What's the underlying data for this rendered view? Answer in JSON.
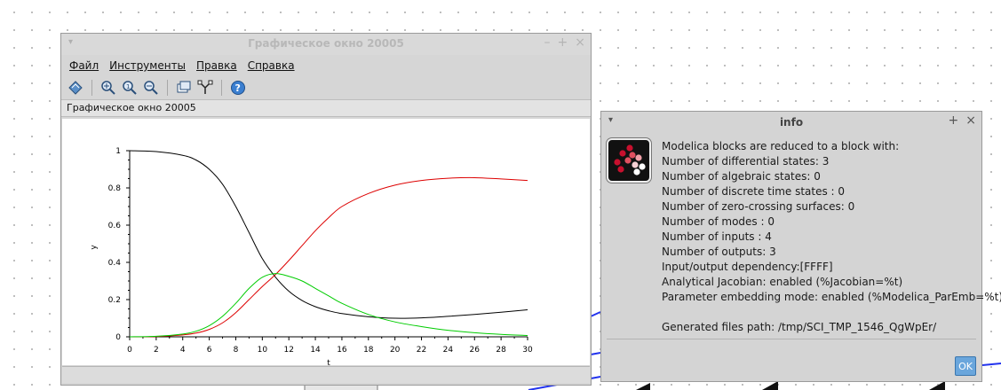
{
  "graphic_window": {
    "title": "Графическое окно 20005",
    "subtitle": "Графическое окно 20005",
    "menu": [
      {
        "label": "Файл"
      },
      {
        "label": "Инструменты"
      },
      {
        "label": "Правка"
      },
      {
        "label": "Справка"
      }
    ],
    "toolbar_icons": [
      "rotate-icon",
      "zoom-icon",
      "zoom-in-icon",
      "zoom-out-icon",
      "datatip-icon",
      "figure-editor-icon",
      "help-icon"
    ]
  },
  "chart_data": {
    "type": "line",
    "xlabel": "t",
    "ylabel": "y",
    "xlim": [
      0,
      30
    ],
    "ylim": [
      0,
      1
    ],
    "xticks": [
      "0",
      "2",
      "4",
      "6",
      "8",
      "10",
      "12",
      "14",
      "16",
      "18",
      "20",
      "22",
      "24",
      "26",
      "28",
      "30"
    ],
    "yticks": [
      "0",
      "0.2",
      "0.4",
      "0.6",
      "0.8",
      "1"
    ],
    "grid": false,
    "series": [
      {
        "color": "#000000",
        "x": [
          0,
          2,
          4,
          5,
          6,
          7,
          8,
          9,
          10,
          11,
          12,
          13,
          14,
          15,
          16,
          18,
          20,
          22,
          24,
          26,
          28,
          30
        ],
        "y": [
          1.0,
          0.995,
          0.975,
          0.95,
          0.9,
          0.82,
          0.7,
          0.56,
          0.42,
          0.32,
          0.245,
          0.195,
          0.162,
          0.14,
          0.125,
          0.108,
          0.1,
          0.102,
          0.11,
          0.12,
          0.132,
          0.145
        ]
      },
      {
        "color": "#dd0000",
        "x": [
          0,
          2,
          4,
          5,
          6,
          7,
          8,
          9,
          10,
          11,
          12,
          13,
          14,
          15,
          16,
          18,
          20,
          22,
          24,
          26,
          28,
          30
        ],
        "y": [
          0,
          0.001,
          0.01,
          0.02,
          0.04,
          0.075,
          0.13,
          0.2,
          0.27,
          0.335,
          0.41,
          0.49,
          0.57,
          0.64,
          0.7,
          0.77,
          0.815,
          0.84,
          0.852,
          0.855,
          0.848,
          0.84
        ]
      },
      {
        "color": "#00cc00",
        "x": [
          0,
          2,
          4,
          5,
          6,
          7,
          8,
          9,
          10,
          11,
          12,
          13,
          14,
          15,
          16,
          18,
          20,
          22,
          24,
          26,
          28,
          30
        ],
        "y": [
          0,
          0.003,
          0.015,
          0.03,
          0.06,
          0.11,
          0.18,
          0.26,
          0.32,
          0.34,
          0.325,
          0.3,
          0.26,
          0.22,
          0.18,
          0.12,
          0.08,
          0.055,
          0.035,
          0.022,
          0.013,
          0.007
        ]
      }
    ]
  },
  "info_dialog": {
    "title": "info",
    "lines": [
      "Modelica blocks are reduced to a block with:",
      "Number of differential states: 3",
      "Number of algebraic states: 0",
      "Number of discrete time states : 0",
      "Number of zero-crossing surfaces: 0",
      "Number of modes : 0",
      "Number of inputs : 4",
      "Number of outputs: 3",
      "Input/output dependency:[FFFF]",
      "Analytical Jacobian: enabled (%Jacobian=%t)",
      "Parameter embedding mode: enabled (%Modelica_ParEmb=%t)",
      "",
      "Generated files path: /tmp/SCI_TMP_1546_QgWpEr/"
    ],
    "ok_label": "OK"
  }
}
